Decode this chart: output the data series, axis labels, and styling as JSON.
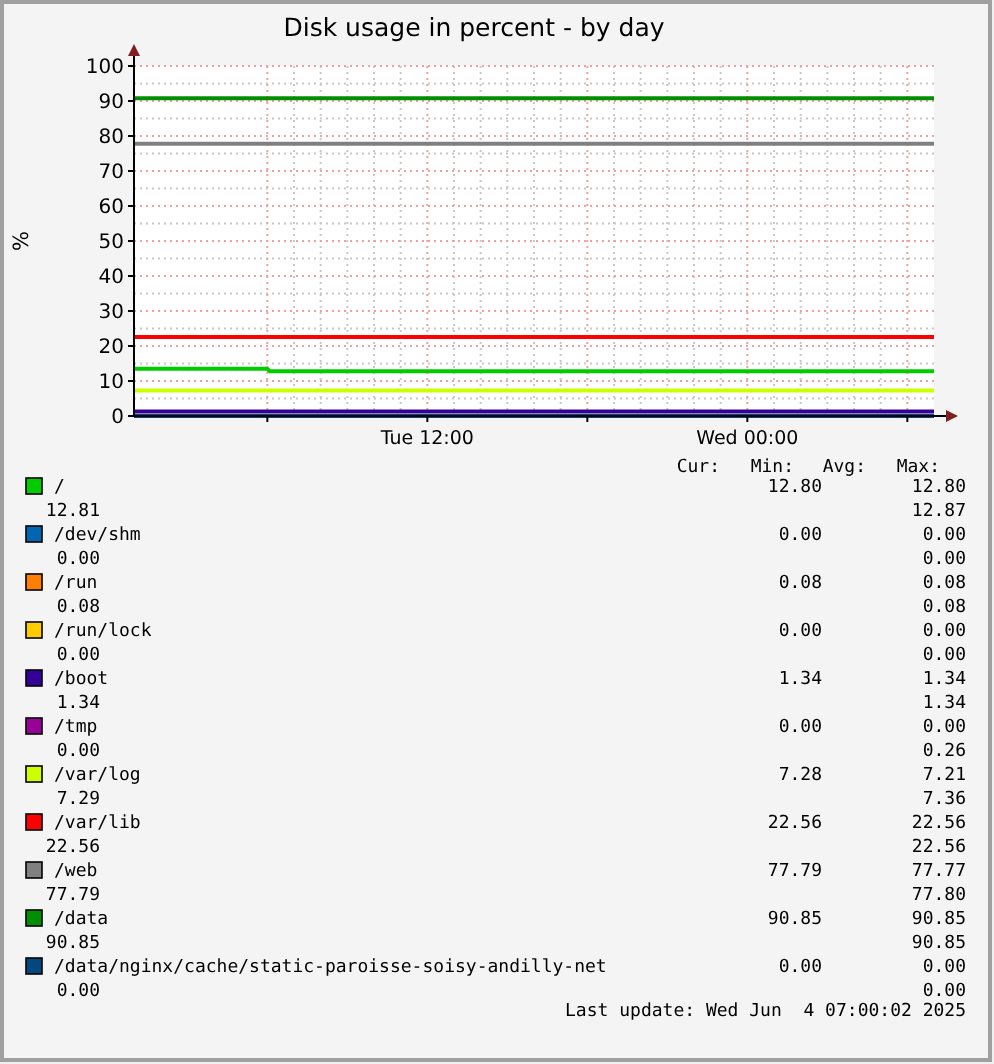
{
  "chart_data": {
    "type": "line",
    "title": "Disk usage in percent - by day",
    "ylabel": "%",
    "xlim": [
      "2025-06-03T01:00",
      "2025-06-04T07:00"
    ],
    "xticks": [
      {
        "value": "2025-06-03T06:00",
        "label": null
      },
      {
        "value": "2025-06-03T12:00",
        "label": "Tue 12:00"
      },
      {
        "value": "2025-06-03T18:00",
        "label": null
      },
      {
        "value": "2025-06-04T00:00",
        "label": "Wed 00:00"
      },
      {
        "value": "2025-06-04T06:00",
        "label": null
      }
    ],
    "ylim": [
      0,
      100
    ],
    "yticks": [
      0,
      10,
      20,
      30,
      40,
      50,
      60,
      70,
      80,
      90,
      100
    ],
    "grid": true,
    "legend": "bottom",
    "series": [
      {
        "name": "/",
        "color": "#00cc00",
        "x": [
          "2025-06-03T01:00",
          "2025-06-03T06:00",
          "2025-06-03T06:05",
          "2025-06-04T07:00"
        ],
        "values": [
          13.5,
          13.5,
          12.8,
          12.8
        ]
      },
      {
        "name": "/dev/shm",
        "color": "#0066b3"
      },
      {
        "name": "/run",
        "color": "#ff8000"
      },
      {
        "name": "/run/lock",
        "color": "#ffcc00"
      },
      {
        "name": "/boot",
        "color": "#330099",
        "x": [
          "2025-06-03T01:00",
          "2025-06-04T07:00"
        ],
        "values": [
          1.3,
          1.3
        ]
      },
      {
        "name": "/tmp",
        "color": "#990099"
      },
      {
        "name": "/var/log",
        "color": "#ccff00",
        "x": [
          "2025-06-03T01:00",
          "2025-06-04T07:00"
        ],
        "values": [
          7.3,
          7.3
        ]
      },
      {
        "name": "/var/lib",
        "color": "#ff0000",
        "x": [
          "2025-06-03T01:00",
          "2025-06-04T07:00"
        ],
        "values": [
          22.6,
          22.6
        ]
      },
      {
        "name": "/web",
        "color": "#808080",
        "x": [
          "2025-06-03T01:00",
          "2025-06-04T07:00"
        ],
        "values": [
          77.8,
          77.8
        ]
      },
      {
        "name": "/data",
        "color": "#008f00",
        "x": [
          "2025-06-03T01:00",
          "2025-06-04T07:00"
        ],
        "values": [
          90.8,
          90.8
        ]
      },
      {
        "name": "/data/nginx/cache/static-paroisse-soisy-andilly-net",
        "color": "#00487d",
        "x": [
          "2025-06-03T01:00",
          "2025-06-04T07:00"
        ],
        "values": [
          0,
          0
        ]
      }
    ],
    "annotations": [
      "Cur:",
      "Min:",
      "Avg:",
      "Max:",
      "12.80",
      "12.80",
      "12.81",
      "12.87",
      "0.00",
      "0.00",
      "0.00",
      "0.00",
      "0.08",
      "0.08",
      "0.08",
      "0.08",
      "0.00",
      "0.00",
      "0.00",
      "0.00",
      "1.34",
      "1.34",
      "1.34",
      "1.34",
      "0.00",
      "0.00",
      "0.00",
      "0.26",
      "7.28",
      "7.21",
      "7.29",
      "7.36",
      "22.56",
      "22.56",
      "22.56",
      "22.56",
      "77.79",
      "77.77",
      "77.79",
      "77.80",
      "90.85",
      "90.85",
      "90.85",
      "90.85",
      "0.00",
      "0.00",
      "0.00",
      "0.00",
      "Last update: Wed Jun  4 07:00:02 2025"
    ]
  }
}
